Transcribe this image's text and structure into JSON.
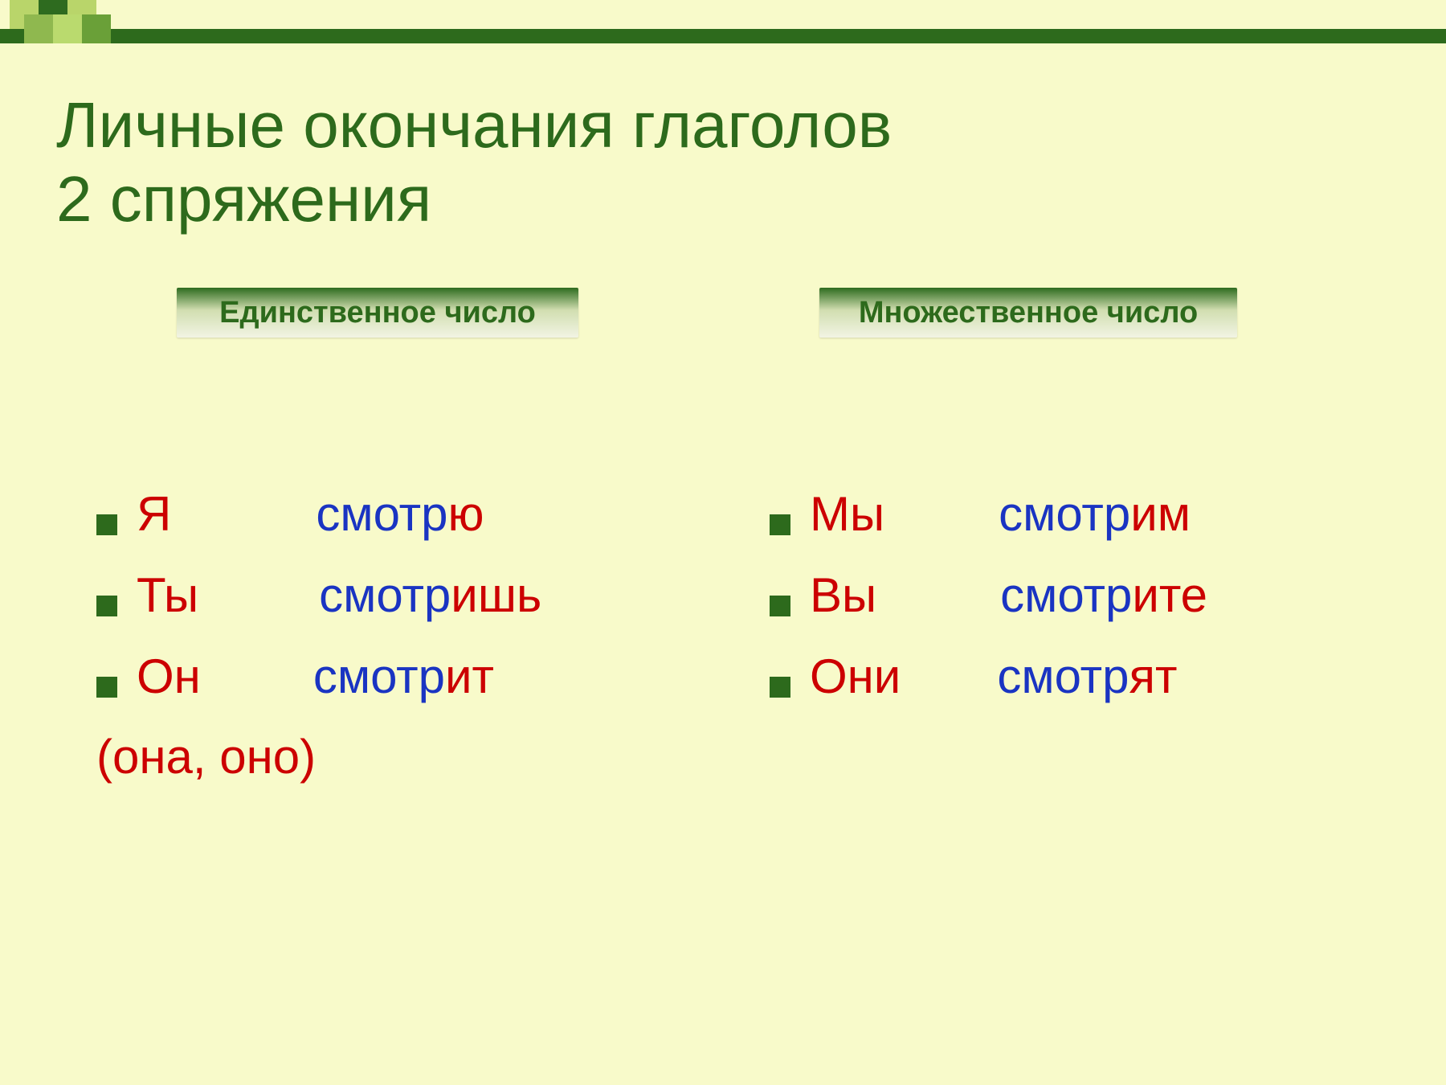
{
  "title_line1": "Личные окончания глаголов",
  "title_line2": "2 спряжения",
  "pill_singular": "Единственное число",
  "pill_plural": "Множественное число",
  "singular": {
    "r1": {
      "pron": "Я",
      "stem": "смотр",
      "end": "ю"
    },
    "r2": {
      "pron": "Ты",
      "stem": "смотр",
      "end": "ишь"
    },
    "r3": {
      "pron": "Он",
      "stem": "смотр",
      "end": "ит"
    },
    "note": "(она, оно)"
  },
  "plural": {
    "r1": {
      "pron": "Мы",
      "stem": "смотр",
      "end": "им"
    },
    "r2": {
      "pron": "Вы",
      "stem": "смотр",
      "end": "ите"
    },
    "r3": {
      "pron": "Они",
      "stem": "смотр",
      "end": "ят"
    }
  },
  "colors": {
    "background": "#f8faca",
    "title": "#2d6a1c",
    "bullet": "#2d6a1c",
    "pronoun": "#cc0000",
    "stem": "#1a34c2",
    "ending": "#cc0000"
  }
}
